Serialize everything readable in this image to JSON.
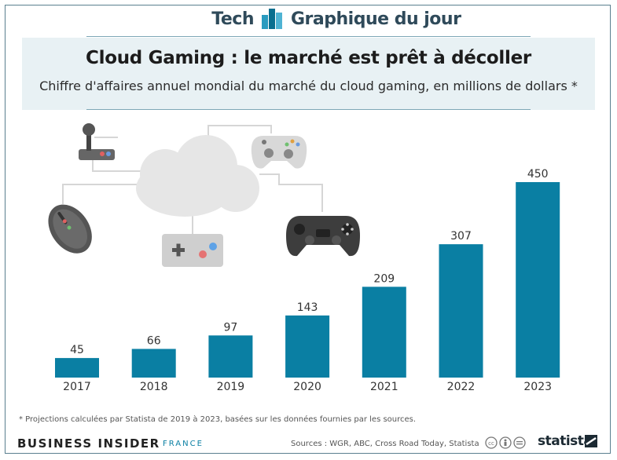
{
  "header": {
    "left_label": "Tech",
    "right_label": "Graphique du jour"
  },
  "chart_data": {
    "type": "bar",
    "title": "Cloud Gaming : le marché est prêt à décoller",
    "subtitle": "Chiffre d'affaires annuel mondial du marché du cloud gaming, en millions de dollars *",
    "xlabel": "",
    "ylabel": "",
    "categories": [
      "2017",
      "2018",
      "2019",
      "2020",
      "2021",
      "2022",
      "2023"
    ],
    "values": [
      45,
      66,
      97,
      143,
      209,
      307,
      450
    ],
    "data_labels": [
      "45",
      "66",
      "97",
      "143",
      "209",
      "307",
      "450"
    ],
    "ylim": [
      0,
      450
    ],
    "grid": false,
    "legend": "none",
    "bar_color": "#0a7fa3"
  },
  "footnote": "* Projections calculées par Statista de 2019 à 2023, basées sur les données fournies par les sources.",
  "footer": {
    "publisher": "BUSINESS INSIDER",
    "publisher_region": "FRANCE",
    "sources": "Sources : WGR, ABC, Cross Road Today, Statista",
    "brand": "statista"
  },
  "colors": {
    "accent": "#0a7fa3",
    "text_dark": "#2f4a5a",
    "band": "#e8f1f4"
  },
  "icons": [
    "joystick-icon",
    "cloud-icon",
    "gamepad-white-icon",
    "mouse-icon",
    "retro-controller-icon",
    "gamepad-black-icon",
    "statista-logo-icon",
    "creative-commons-icons"
  ]
}
